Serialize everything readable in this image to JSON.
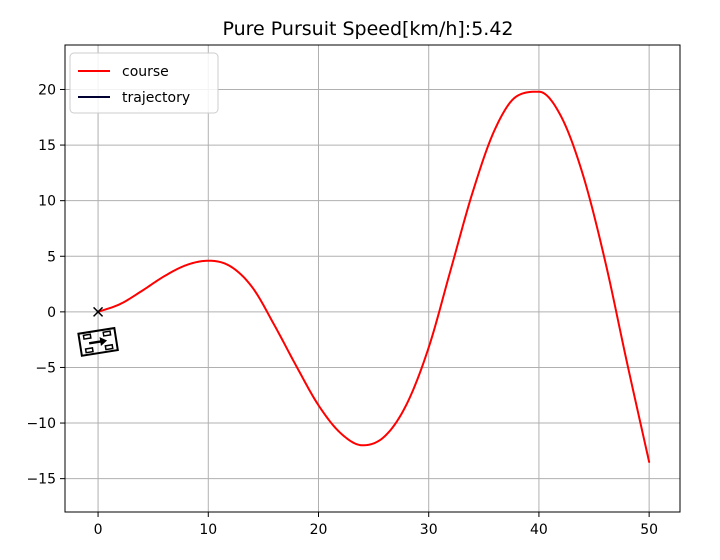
{
  "chart_data": {
    "type": "line",
    "title": "Pure Pursuit Speed[km/h]:5.42",
    "xlabel": "",
    "ylabel": "",
    "xlim": [
      -3.0,
      52.8
    ],
    "ylim": [
      -18.0,
      24.0
    ],
    "xticks": [
      0,
      10,
      20,
      30,
      40,
      50
    ],
    "yticks": [
      -15,
      -10,
      -5,
      0,
      5,
      10,
      15,
      20
    ],
    "xtick_labels": [
      "0",
      "10",
      "20",
      "30",
      "40",
      "50"
    ],
    "ytick_labels": [
      "−15",
      "−10",
      "−5",
      "0",
      "5",
      "10",
      "15",
      "20"
    ],
    "grid": true,
    "legend_position": "top-left",
    "series": [
      {
        "name": "course",
        "color": "#ff0000",
        "x": [
          0,
          2,
          4,
          6,
          8,
          10,
          12,
          14,
          16,
          18,
          20,
          22,
          24,
          26,
          28,
          30,
          32,
          34,
          36,
          38,
          40,
          42,
          44,
          46,
          48,
          50
        ],
        "y": [
          0.0,
          0.7,
          1.9,
          3.2,
          4.2,
          4.6,
          4.1,
          2.2,
          -1.2,
          -4.9,
          -8.4,
          -10.9,
          -12.0,
          -11.2,
          -8.3,
          -3.2,
          3.8,
          10.8,
          16.4,
          19.4,
          19.8,
          17.6,
          12.3,
          4.6,
          -4.6,
          -13.5
        ]
      },
      {
        "name": "trajectory",
        "color": "#000033",
        "x": [
          0
        ],
        "y": [
          0
        ]
      }
    ],
    "annotations": {
      "target_marker": {
        "x": 0,
        "y": 0,
        "symbol": "x"
      },
      "vehicle": {
        "x": 0.0,
        "y": -2.7,
        "yaw_deg": 9,
        "length": 3.3,
        "width": 2.0
      }
    }
  }
}
